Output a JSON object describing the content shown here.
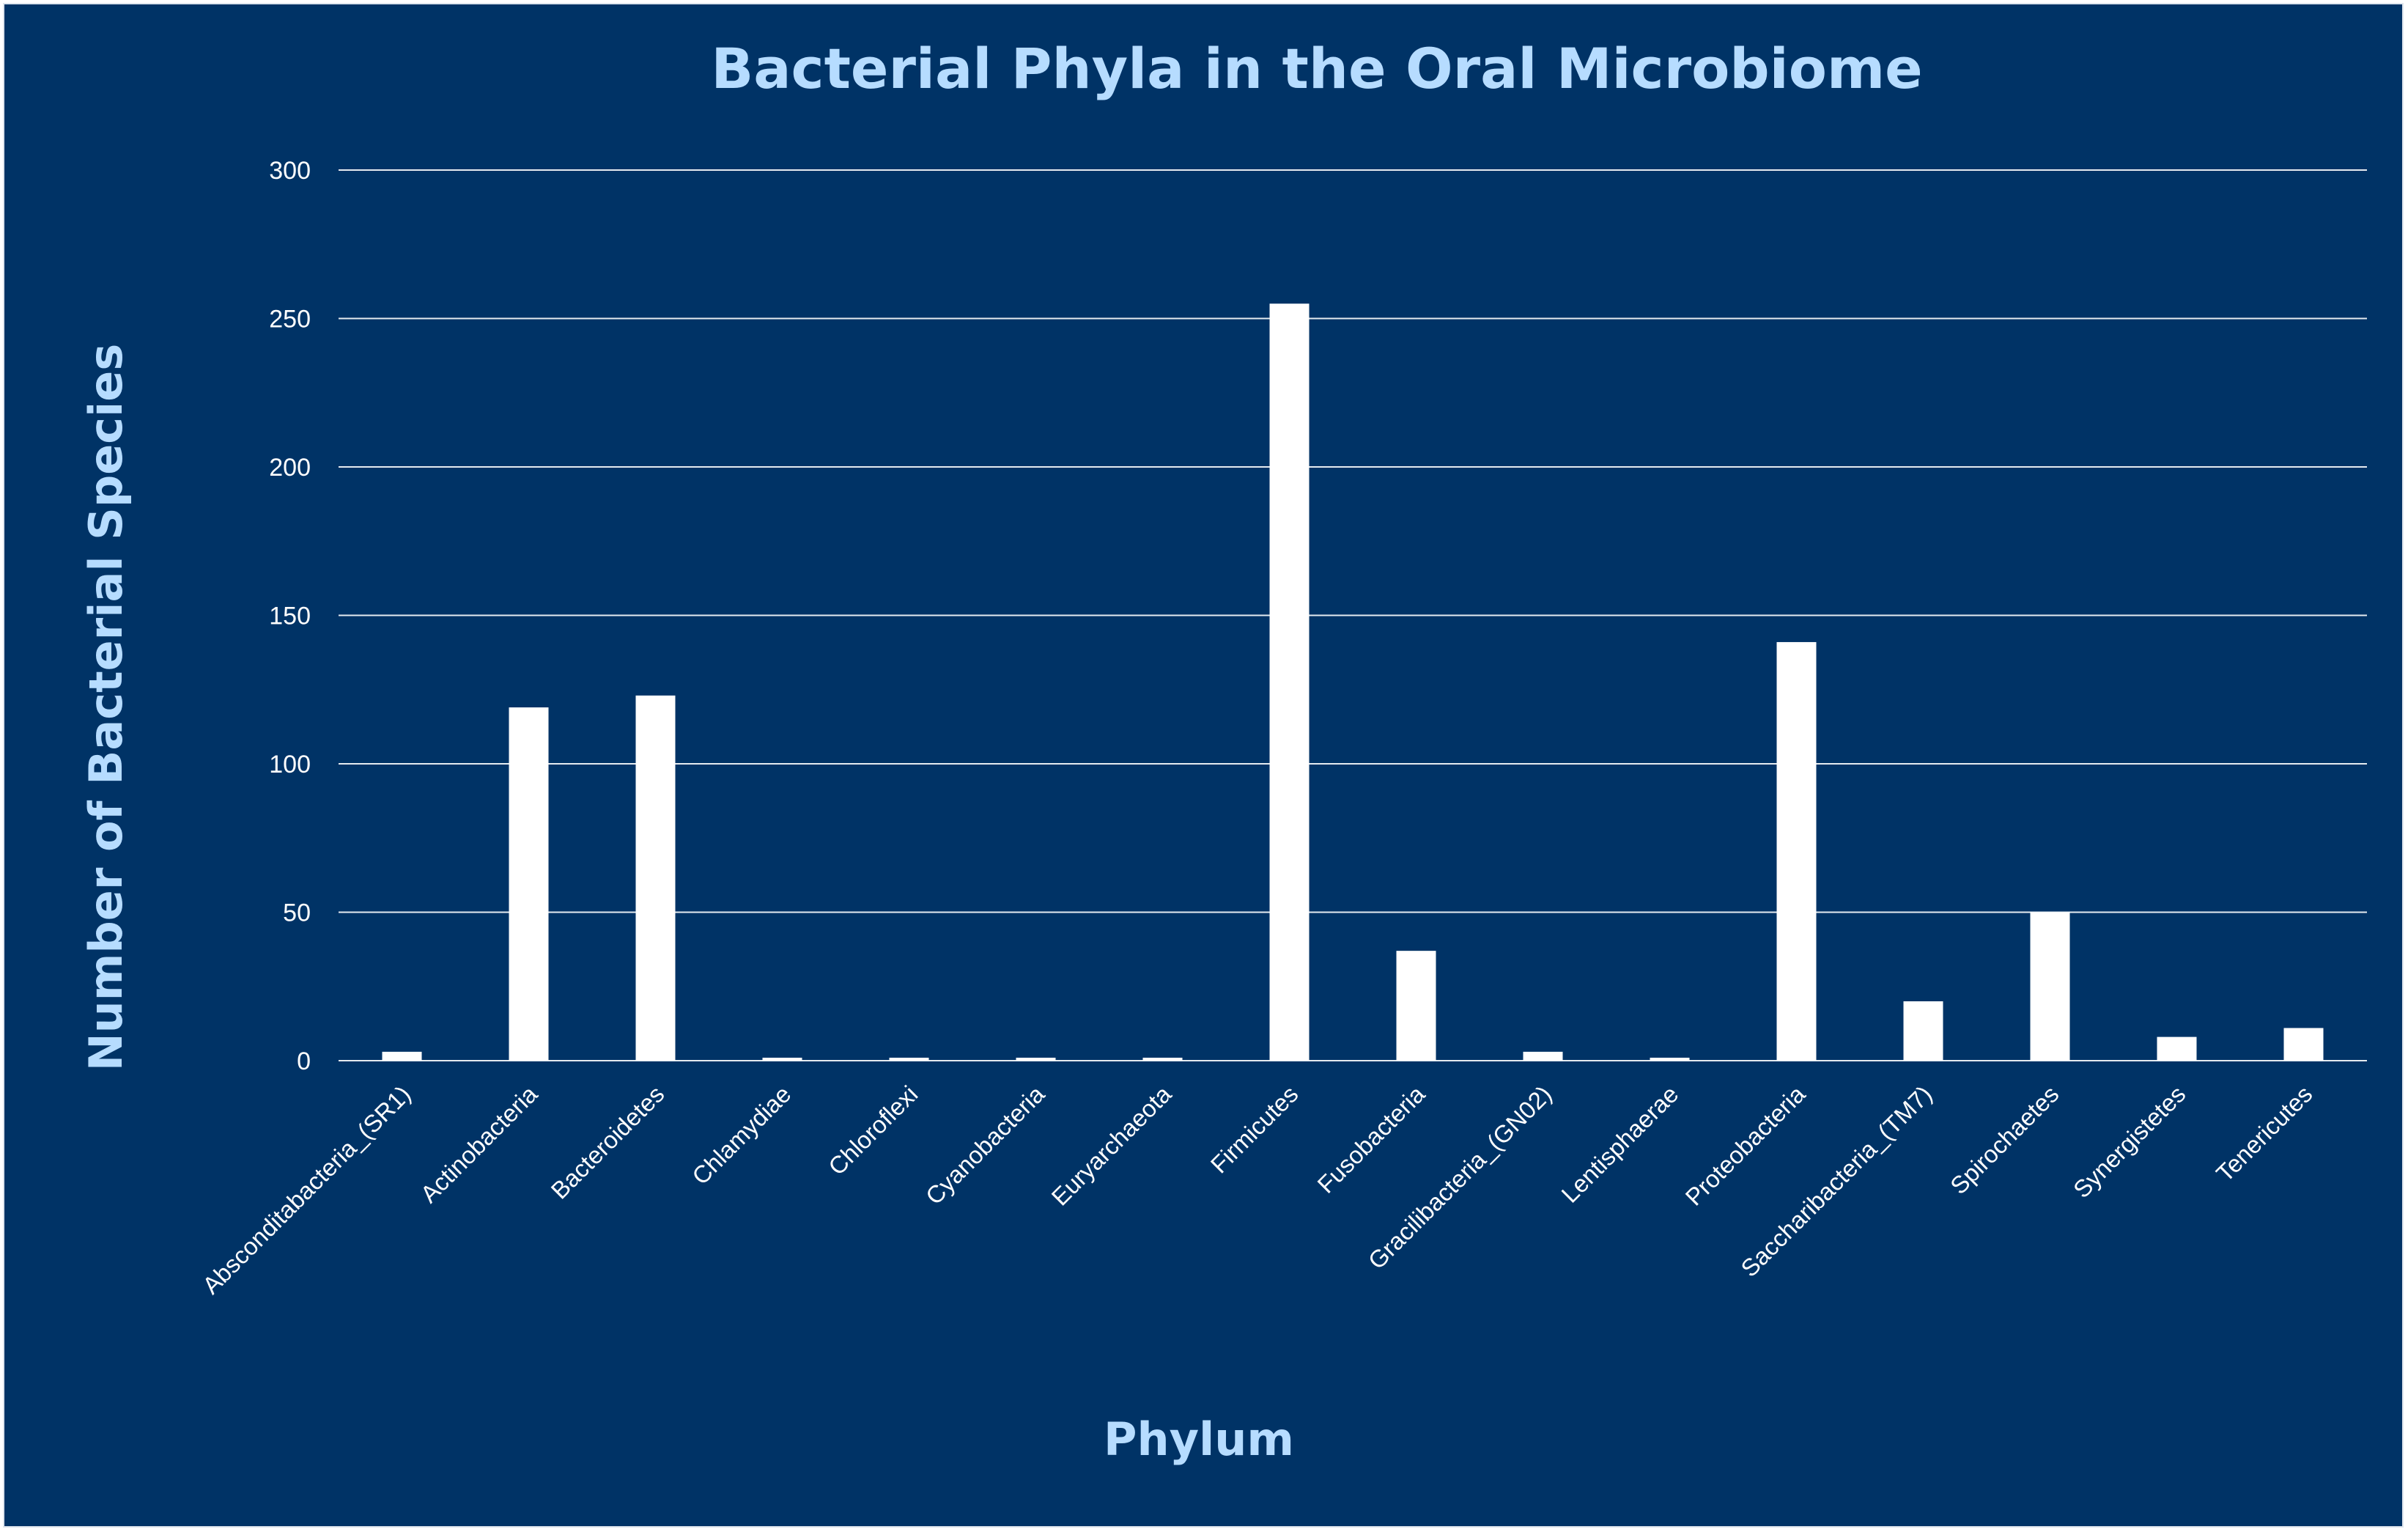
{
  "chart_data": {
    "type": "bar",
    "title": "Bacterial Phyla in the Oral Microbiome",
    "xlabel": "Phylum",
    "ylabel": "Number of Bacterial Species",
    "ylim": [
      0,
      300
    ],
    "yticks": [
      0,
      50,
      100,
      150,
      200,
      250,
      300
    ],
    "grid": true,
    "legend": "none",
    "categories": [
      "Absconditabacteria_(SR1)",
      "Actinobacteria",
      "Bacteroidetes",
      "Chlamydiae",
      "Chloroflexi",
      "Cyanobacteria",
      "Euryarchaeota",
      "Firmicutes",
      "Fusobacteria",
      "Gracilibacteria_(GN02)",
      "Lentisphaerae",
      "Proteobacteria",
      "Saccharibacteria_(TM7)",
      "Spirochaetes",
      "Synergistetes",
      "Tenericutes"
    ],
    "values": [
      3,
      119,
      123,
      1,
      1,
      1,
      1,
      255,
      37,
      3,
      1,
      141,
      20,
      50,
      8,
      11
    ],
    "colors": {
      "background": "#003366",
      "bar": "#ffffff",
      "title": "#b6dcff",
      "gridline": "#ffffff"
    }
  }
}
